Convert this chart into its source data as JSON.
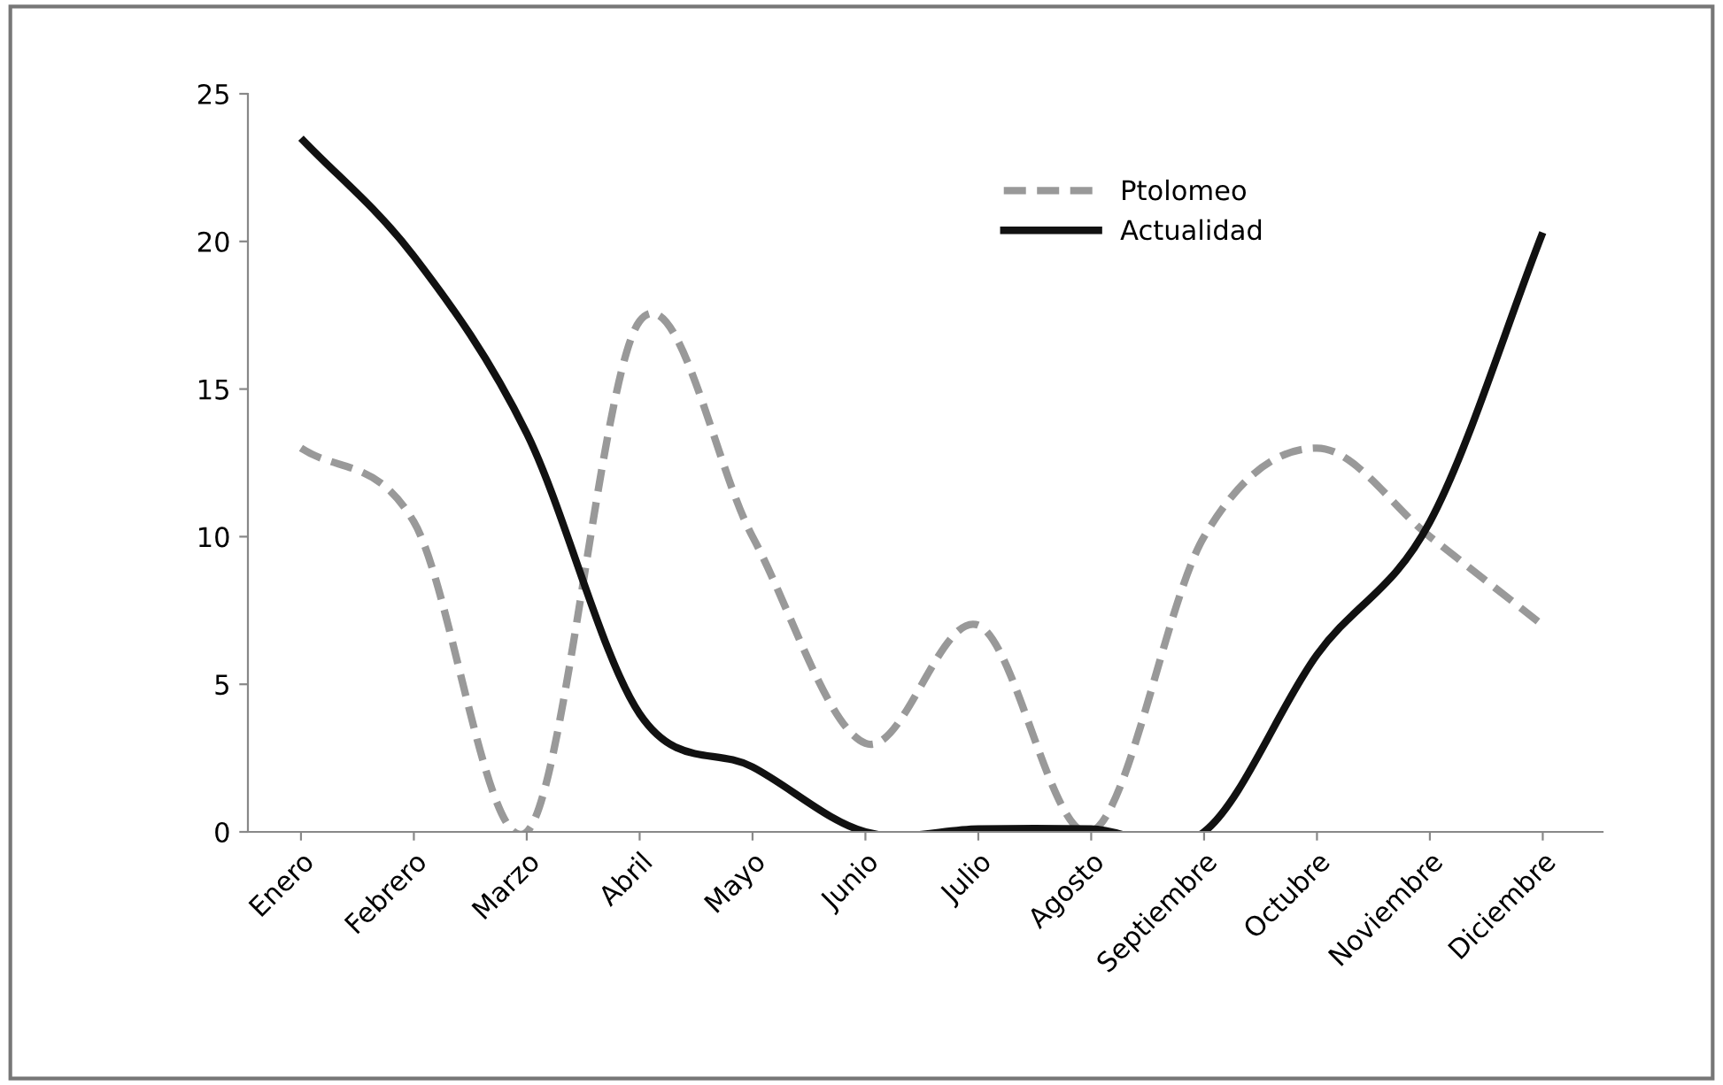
{
  "chart_data": {
    "type": "line",
    "categories": [
      "Enero",
      "Febrero",
      "Marzo",
      "Abril",
      "Mayo",
      "Junio",
      "Julio",
      "Agosto",
      "Septiembre",
      "Octubre",
      "Noviembre",
      "Diciembre"
    ],
    "series": [
      {
        "name": "Ptolomeo",
        "color": "#999999",
        "line_style": "dashed",
        "values": [
          13,
          10.5,
          0,
          17.3,
          10,
          3,
          7,
          0,
          10,
          13,
          10,
          7
        ]
      },
      {
        "name": "Actualidad",
        "color": "#111111",
        "line_style": "solid",
        "values": [
          23.5,
          19.5,
          13.5,
          4,
          2.2,
          0,
          0.1,
          0.1,
          0,
          6,
          10.5,
          20.3
        ]
      }
    ],
    "ylim": [
      0,
      25
    ],
    "yticks": [
      0,
      5,
      10,
      15,
      20,
      25
    ],
    "grid": false,
    "legend": "top right",
    "marker": "none"
  }
}
